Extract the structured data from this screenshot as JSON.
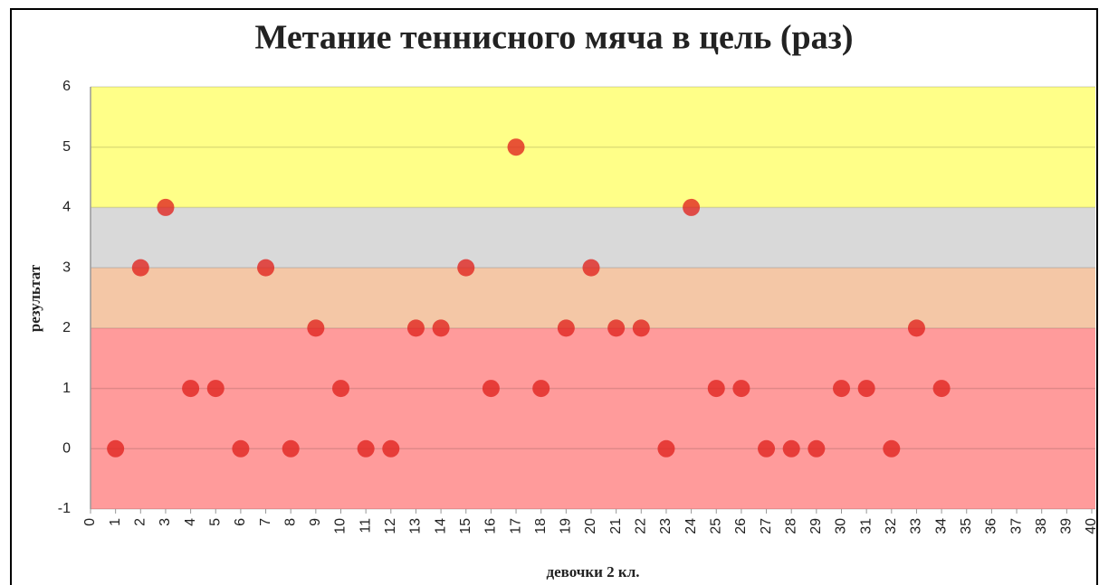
{
  "chart_data": {
    "type": "scatter",
    "title": "Метание теннисного мяча в цель (раз)",
    "x_label": "девочки 2 кл.",
    "y_label": "результат",
    "series": [
      {
        "color": "#e0221e",
        "x": [
          1,
          2,
          3,
          4,
          5,
          6,
          7,
          8,
          9,
          10,
          11,
          12,
          13,
          14,
          15,
          16,
          17,
          18,
          19,
          20,
          21,
          22,
          23,
          24,
          25,
          26,
          27,
          28,
          29,
          30,
          31,
          32,
          33,
          34
        ],
        "values": [
          0,
          3,
          4,
          1,
          1,
          0,
          3,
          0,
          2,
          1,
          0,
          0,
          2,
          2,
          3,
          1,
          5,
          1,
          2,
          3,
          2,
          2,
          0,
          4,
          1,
          1,
          0,
          0,
          0,
          1,
          1,
          0,
          2,
          1
        ]
      }
    ],
    "bands": [
      {
        "from": -1,
        "to": 2,
        "color": "#ff9b9b"
      },
      {
        "from": 2,
        "to": 3,
        "color": "#f4c7a6"
      },
      {
        "from": 3,
        "to": 4,
        "color": "#d9d9d9"
      },
      {
        "from": 4,
        "to": 6,
        "color": "#ffff88"
      }
    ],
    "xlim": [
      0,
      40
    ],
    "xticks": [
      0,
      1,
      2,
      3,
      4,
      5,
      6,
      7,
      8,
      9,
      10,
      11,
      12,
      13,
      14,
      15,
      16,
      17,
      18,
      19,
      20,
      21,
      22,
      23,
      24,
      25,
      26,
      27,
      28,
      29,
      30,
      31,
      32,
      33,
      34,
      35,
      36,
      37,
      38,
      39,
      40
    ],
    "ylim": [
      -1,
      6
    ],
    "yticks": [
      -1,
      0,
      1,
      2,
      3,
      4,
      5,
      6
    ],
    "grid": true
  }
}
